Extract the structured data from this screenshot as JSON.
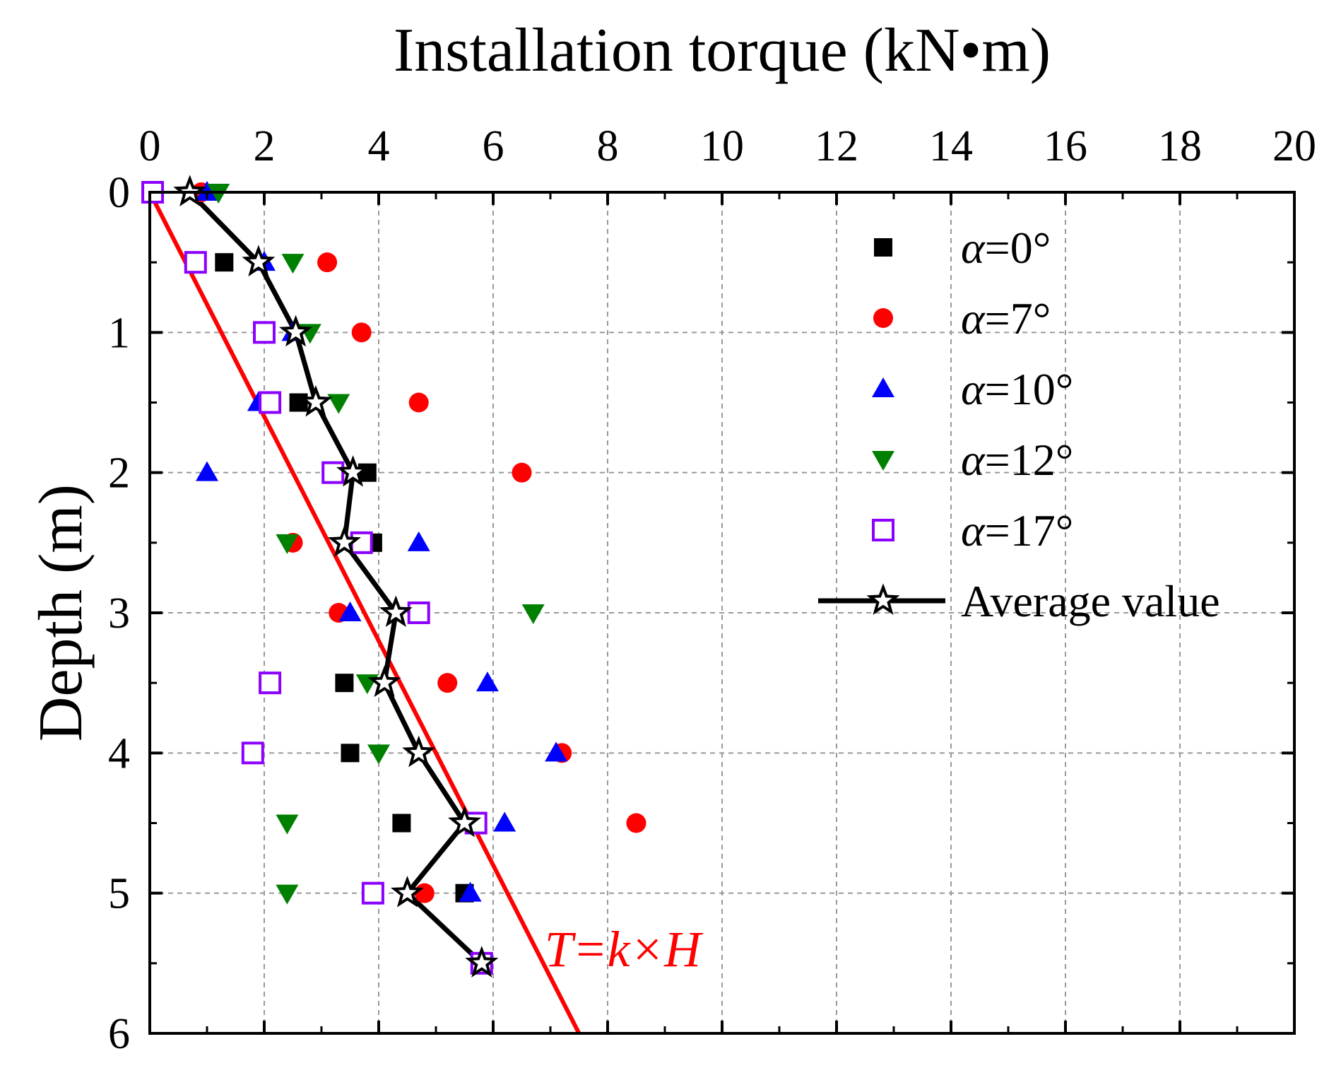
{
  "chart_data": {
    "type": "scatter",
    "xlabel": "Installation torque (kN•m)",
    "ylabel": "Depth (m)",
    "xlim": [
      0,
      20
    ],
    "ylim": [
      0,
      6
    ],
    "x_axis_position": "top",
    "y_axis_inverted": true,
    "x_ticks": [
      0,
      2,
      4,
      6,
      8,
      10,
      12,
      14,
      16,
      18,
      20
    ],
    "y_ticks": [
      0,
      1,
      2,
      3,
      4,
      5,
      6
    ],
    "grid": true,
    "legend_position": "top-right",
    "series": [
      {
        "name_symbol": "α",
        "name_value": "=0°",
        "marker": "square-filled",
        "color": "#000000",
        "points": [
          [
            1.3,
            0.5
          ],
          [
            2.6,
            1.5
          ],
          [
            3.8,
            2.0
          ],
          [
            3.9,
            2.5
          ],
          [
            3.4,
            3.5
          ],
          [
            3.5,
            4.0
          ],
          [
            4.4,
            4.5
          ],
          [
            5.5,
            5.0
          ]
        ]
      },
      {
        "name_symbol": "α",
        "name_value": "=7°",
        "marker": "circle-filled",
        "color": "#ff0000",
        "points": [
          [
            0.9,
            0.0
          ],
          [
            3.1,
            0.5
          ],
          [
            3.7,
            1.0
          ],
          [
            4.7,
            1.5
          ],
          [
            6.5,
            2.0
          ],
          [
            2.5,
            2.5
          ],
          [
            3.3,
            3.0
          ],
          [
            5.2,
            3.5
          ],
          [
            7.2,
            4.0
          ],
          [
            8.5,
            4.5
          ],
          [
            4.8,
            5.0
          ]
        ]
      },
      {
        "name_symbol": "α",
        "name_value": "=10°",
        "marker": "triangle-up-filled",
        "color": "#0000ff",
        "points": [
          [
            1.0,
            0.0
          ],
          [
            2.0,
            0.5
          ],
          [
            2.5,
            1.0
          ],
          [
            1.9,
            1.5
          ],
          [
            1.0,
            2.0
          ],
          [
            4.7,
            2.5
          ],
          [
            3.5,
            3.0
          ],
          [
            5.9,
            3.5
          ],
          [
            7.1,
            4.0
          ],
          [
            6.2,
            4.5
          ],
          [
            5.6,
            5.0
          ]
        ]
      },
      {
        "name_symbol": "α",
        "name_value": "=12°",
        "marker": "triangle-down-filled",
        "color": "#008000",
        "points": [
          [
            1.2,
            0.0
          ],
          [
            2.5,
            0.5
          ],
          [
            2.8,
            1.0
          ],
          [
            3.3,
            1.5
          ],
          [
            2.4,
            2.5
          ],
          [
            6.7,
            3.0
          ],
          [
            3.8,
            3.5
          ],
          [
            4.0,
            4.0
          ],
          [
            2.4,
            4.5
          ],
          [
            2.4,
            5.0
          ]
        ]
      },
      {
        "name_symbol": "α",
        "name_value": "=17°",
        "marker": "square-open",
        "color": "#8b00ff",
        "points": [
          [
            0.05,
            0.0
          ],
          [
            0.8,
            0.5
          ],
          [
            2.0,
            1.0
          ],
          [
            2.1,
            1.5
          ],
          [
            3.2,
            2.0
          ],
          [
            3.7,
            2.5
          ],
          [
            4.7,
            3.0
          ],
          [
            2.1,
            3.5
          ],
          [
            1.8,
            4.0
          ],
          [
            5.7,
            4.5
          ],
          [
            3.9,
            5.0
          ],
          [
            5.8,
            5.5
          ]
        ]
      },
      {
        "name": "Average value",
        "marker": "star-open",
        "line": true,
        "color": "#000000",
        "points": [
          [
            0.7,
            0.0
          ],
          [
            1.9,
            0.5
          ],
          [
            2.55,
            1.0
          ],
          [
            2.9,
            1.5
          ],
          [
            3.55,
            2.0
          ],
          [
            3.4,
            2.5
          ],
          [
            4.3,
            3.0
          ],
          [
            4.1,
            3.5
          ],
          [
            4.7,
            4.0
          ],
          [
            5.5,
            4.5
          ],
          [
            4.5,
            5.0
          ],
          [
            5.8,
            5.5
          ]
        ]
      }
    ],
    "annotation": {
      "text": "T=k×H",
      "color": "#ff0000",
      "line_points": [
        [
          0,
          0
        ],
        [
          7.5,
          6.0
        ]
      ]
    }
  }
}
